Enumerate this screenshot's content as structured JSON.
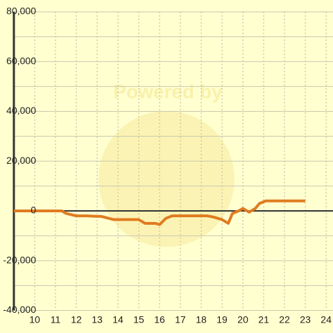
{
  "chart_data": {
    "type": "line",
    "watermark": "Powered by",
    "x": [
      9,
      11.3,
      11.5,
      12,
      12.5,
      13,
      13.2,
      13.8,
      14.5,
      15,
      15.3,
      15.8,
      16.0,
      16.3,
      16.6,
      18,
      18.3,
      18.6,
      19.0,
      19.3,
      19.5,
      19.8,
      20.0,
      20.3,
      20.6,
      20.8,
      21.1,
      23
    ],
    "series": [
      {
        "color": "#e07b20",
        "values": [
          0,
          0,
          -1000,
          -2000,
          -2000,
          -2200,
          -2200,
          -3500,
          -3500,
          -3500,
          -5000,
          -5000,
          -5500,
          -3000,
          -2000,
          -2000,
          -2000,
          -2500,
          -3500,
          -5000,
          -1000,
          0,
          1000,
          -500,
          1000,
          3000,
          4000,
          4000
        ]
      }
    ],
    "xlim": [
      9,
      24.33
    ],
    "ylim": [
      -40000,
      80000
    ],
    "xticks": [
      10,
      11,
      12,
      13,
      14,
      15,
      16,
      17,
      18,
      19,
      20,
      21,
      22,
      23,
      24
    ],
    "yticks": [
      {
        "value": -40000,
        "label": "-40,000"
      },
      {
        "value": -20000,
        "label": "-20,000"
      },
      0,
      {
        "value": 20000,
        "label": "20,000"
      },
      {
        "value": 40000,
        "label": "40,000"
      },
      {
        "value": 60000,
        "label": "60,000"
      },
      {
        "value": 80000,
        "label": "80,000"
      }
    ],
    "minor_yticks": [
      -30000,
      -10000,
      10000,
      30000,
      50000,
      70000
    ],
    "grid": true
  }
}
